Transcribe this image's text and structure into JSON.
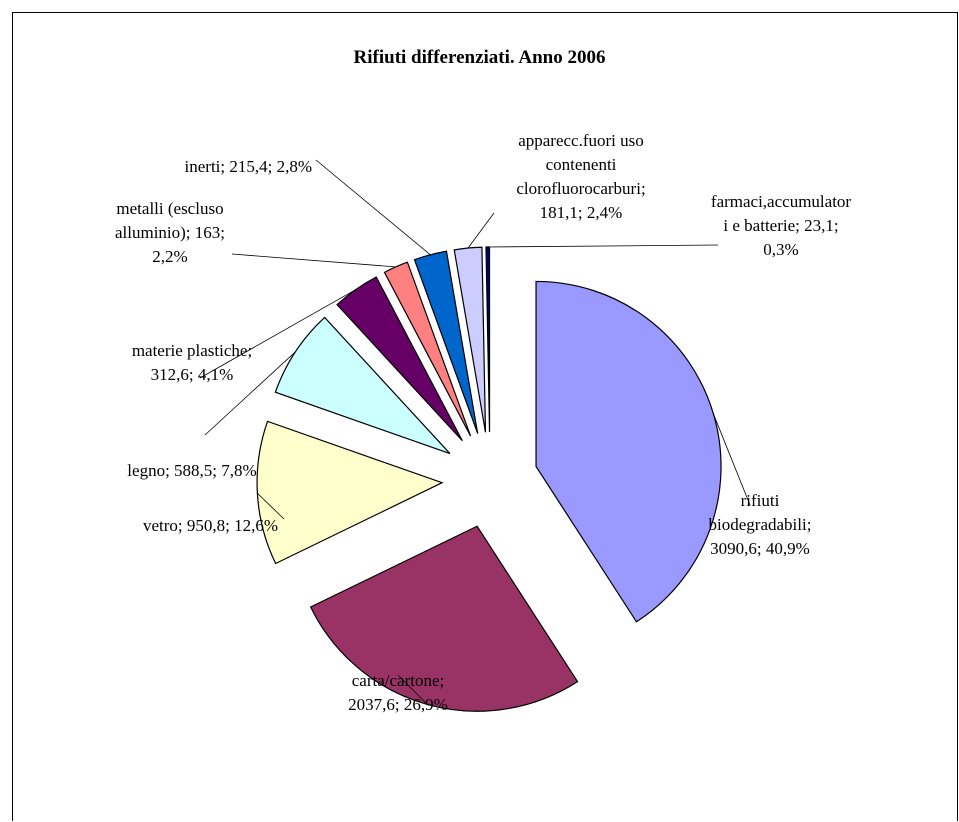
{
  "chart_data": {
    "type": "pie",
    "title": "Rifiuti differenziati. Anno 2006",
    "slices": [
      {
        "name": "rifiuti biodegradabili",
        "value": 3090.6,
        "percent": "40,9%",
        "color": "#9999ff",
        "label_lines": [
          "rifiuti",
          "biodegradabili;",
          "3090,6; 40,9%"
        ]
      },
      {
        "name": "carta/cartone",
        "value": 2037.6,
        "percent": "26,9%",
        "color": "#993366",
        "label_lines": [
          "carta/cartone;",
          "2037,6; 26,9%"
        ]
      },
      {
        "name": "vetro",
        "value": 950.8,
        "percent": "12,6%",
        "color": "#ffffcc",
        "label_lines": [
          "vetro; 950,8; 12,6%"
        ]
      },
      {
        "name": "legno",
        "value": 588.5,
        "percent": "7,8%",
        "color": "#ccffff",
        "label_lines": [
          "legno; 588,5; 7,8%"
        ]
      },
      {
        "name": "materie plastiche",
        "value": 312.6,
        "percent": "4,1%",
        "color": "#660066",
        "label_lines": [
          "materie plastiche;",
          "312,6; 4,1%"
        ]
      },
      {
        "name": "metalli (escluso alluminio)",
        "value": 163,
        "percent": "2,2%",
        "color": "#ff8080",
        "label_lines": [
          "metalli (escluso",
          "alluminio); 163;",
          "2,2%"
        ]
      },
      {
        "name": "inerti",
        "value": 215.4,
        "percent": "2,8%",
        "color": "#0066cc",
        "label_lines": [
          "inerti; 215,4; 2,8%"
        ]
      },
      {
        "name": "apparecc.fuori uso contenenti clorofluorocarburi",
        "value": 181.1,
        "percent": "2,4%",
        "color": "#ccccff",
        "label_lines": [
          "apparecc.fuori uso",
          "contenenti",
          "clorofluorocarburi;",
          "181,1; 2,4%"
        ]
      },
      {
        "name": "farmaci,accumulatori e batterie",
        "value": 23.1,
        "percent": "0,3%",
        "color": "#000080",
        "label_lines": [
          "farmaci,accumulator",
          "i e batterie; 23,1;",
          "0,3%"
        ]
      }
    ]
  }
}
